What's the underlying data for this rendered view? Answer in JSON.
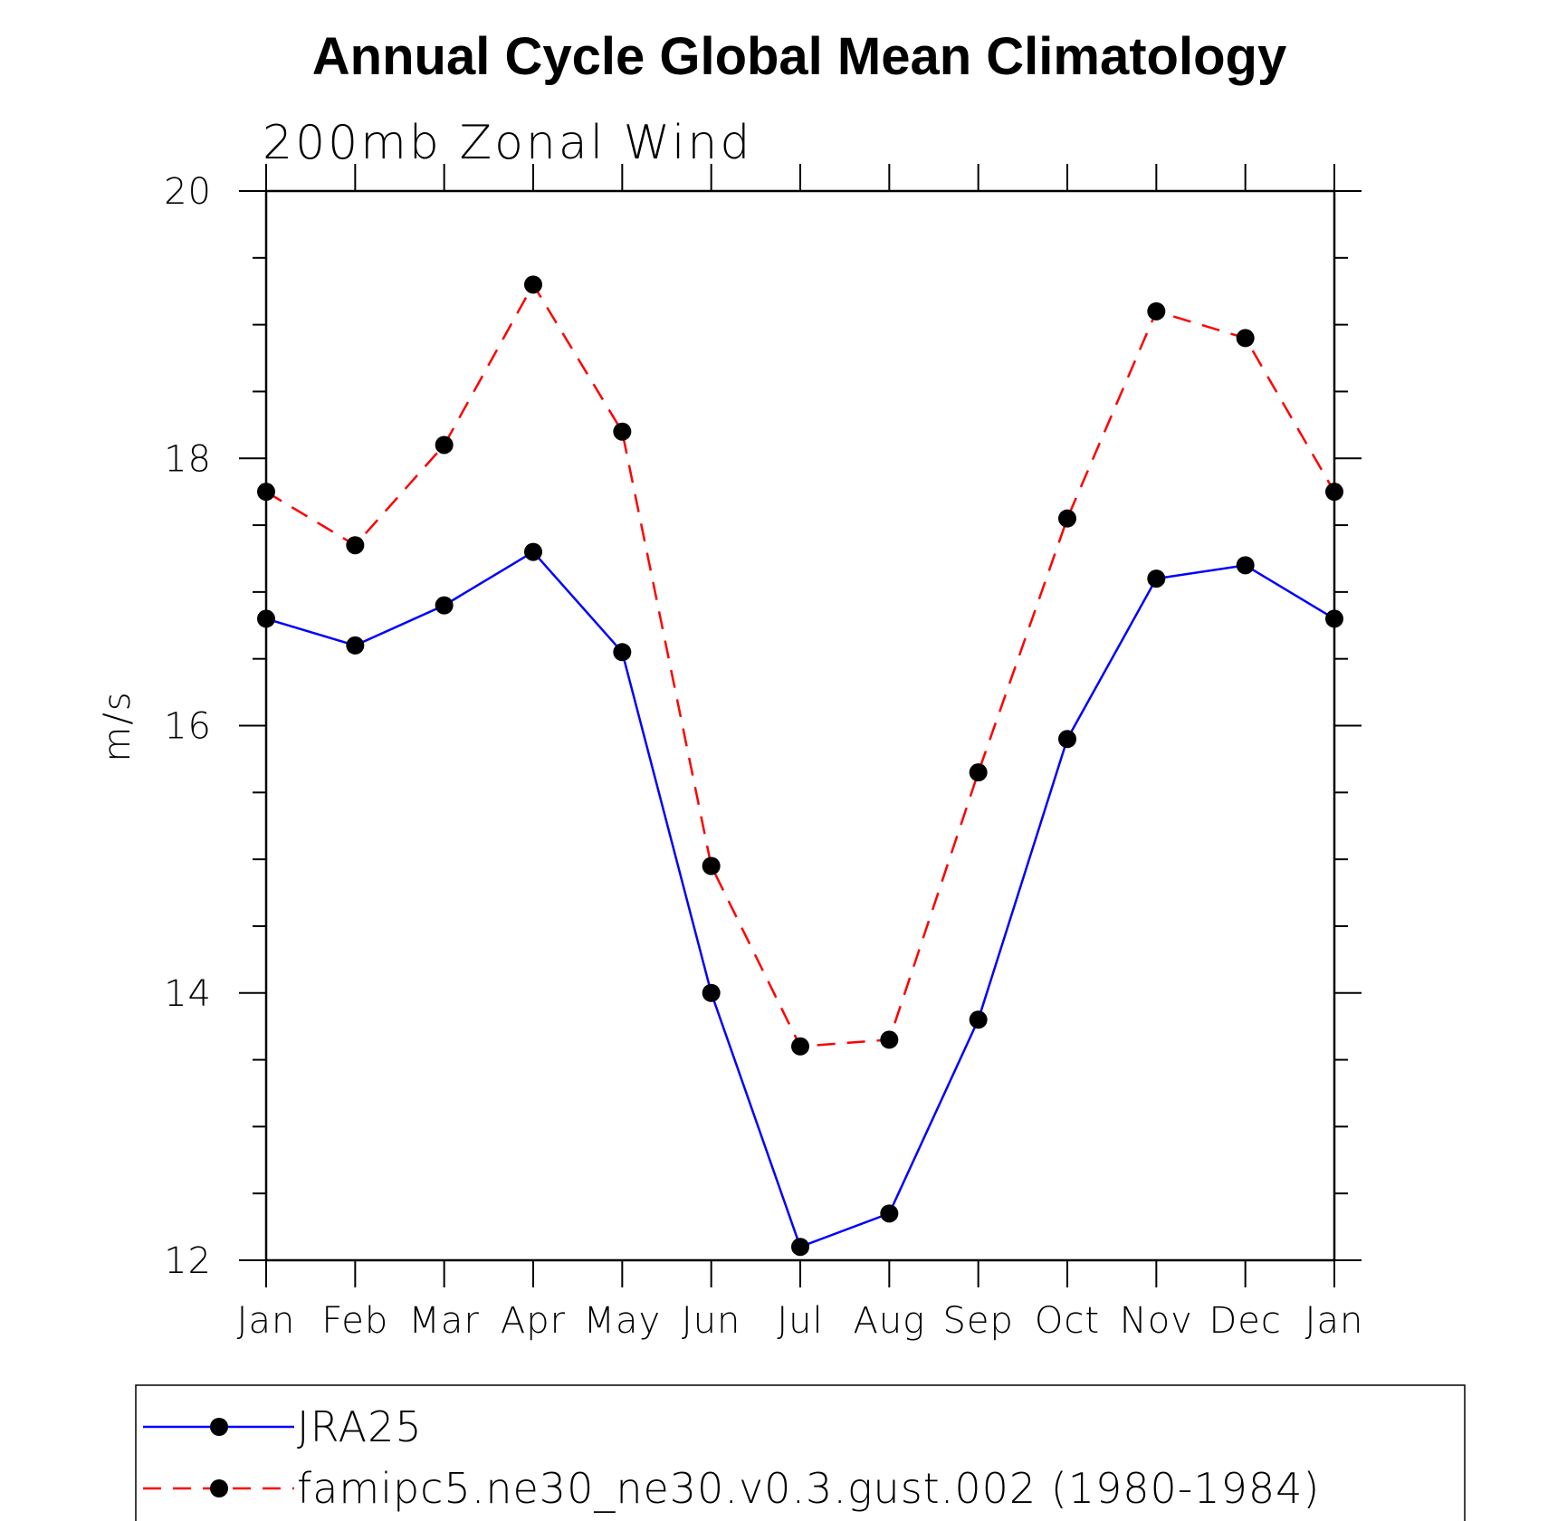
{
  "chart_data": {
    "type": "line",
    "title": "Annual Cycle Global Mean Climatology",
    "subtitle": "200mb Zonal Wind",
    "ylabel": "m/s",
    "xlabel": "",
    "categories": [
      "Jan",
      "Feb",
      "Mar",
      "Apr",
      "May",
      "Jun",
      "Jul",
      "Aug",
      "Sep",
      "Oct",
      "Nov",
      "Dec",
      "Jan"
    ],
    "ylim": [
      12,
      20
    ],
    "yticks": [
      12,
      14,
      16,
      18,
      20
    ],
    "yticks_labels": [
      "12",
      "14",
      "16",
      "18",
      "20"
    ],
    "grid": false,
    "legend_position": "bottom",
    "series": [
      {
        "name": "JRA25",
        "color": "#0000ff",
        "dash": "solid",
        "marker": "filled-circle",
        "values": [
          16.8,
          16.6,
          16.9,
          17.3,
          16.55,
          14.0,
          12.1,
          12.35,
          13.8,
          15.9,
          17.1,
          17.2,
          16.8
        ]
      },
      {
        "name": "famipc5.ne30_ne30.v0.3.gust.002 (1980-1984)",
        "color": "#ff0000",
        "dash": "dashed",
        "marker": "filled-circle",
        "values": [
          17.75,
          17.35,
          18.1,
          19.3,
          18.2,
          14.95,
          13.6,
          13.65,
          15.65,
          17.55,
          19.1,
          18.9,
          17.75
        ]
      }
    ]
  }
}
